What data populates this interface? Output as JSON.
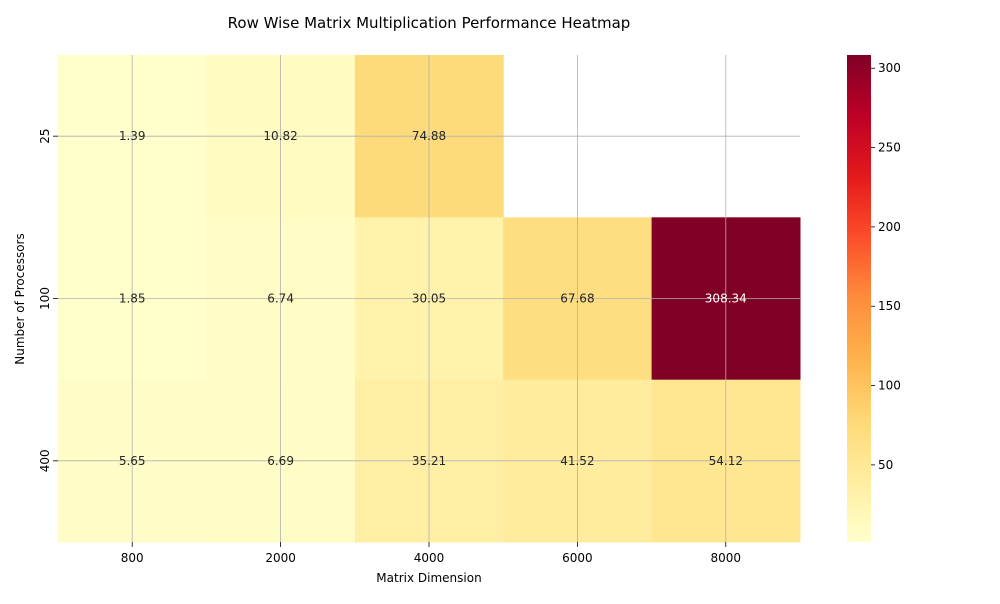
{
  "chart_data": {
    "type": "heatmap",
    "title": "Row Wise Matrix Multiplication Performance Heatmap",
    "xlabel": "Matrix Dimension",
    "ylabel": "Number of Processors",
    "x_categories": [
      "800",
      "2000",
      "4000",
      "6000",
      "8000"
    ],
    "y_categories": [
      "25",
      "100",
      "400"
    ],
    "values": [
      [
        1.39,
        10.82,
        74.88,
        null,
        null
      ],
      [
        1.85,
        6.74,
        30.05,
        67.68,
        308.34
      ],
      [
        5.65,
        6.69,
        35.21,
        41.52,
        54.12
      ]
    ],
    "value_labels": [
      [
        "1.39",
        "10.82",
        "74.88",
        "",
        ""
      ],
      [
        "1.85",
        "6.74",
        "30.05",
        "67.68",
        "308.34"
      ],
      [
        "5.65",
        "6.69",
        "35.21",
        "41.52",
        "54.12"
      ]
    ],
    "colormap": "YlOrRd",
    "colorbar": {
      "range": [
        1.39,
        308.34
      ],
      "ticks": [
        50,
        100,
        150,
        200,
        250,
        300
      ],
      "tick_labels": [
        "50",
        "100",
        "150",
        "200",
        "250",
        "300"
      ]
    },
    "grid": true
  }
}
